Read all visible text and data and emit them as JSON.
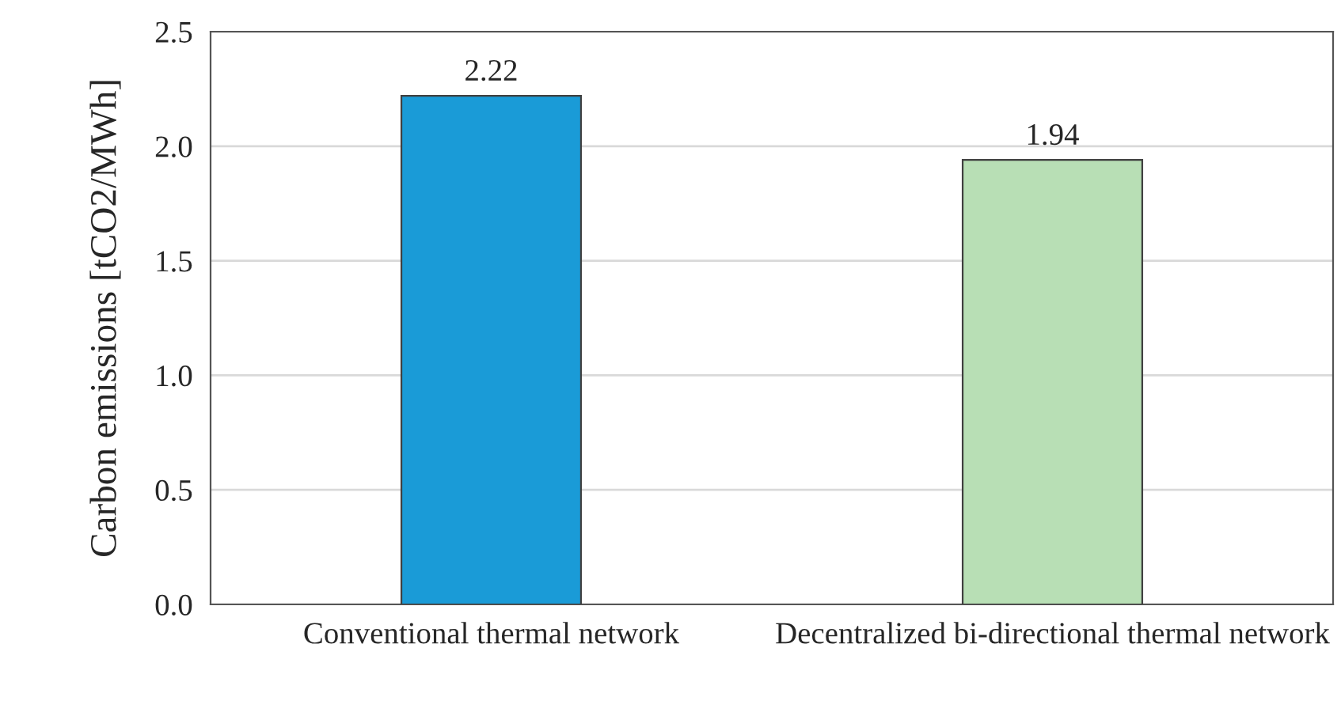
{
  "chart_data": {
    "type": "bar",
    "ylabel": "Carbon emissions [tCO2/MWh]",
    "categories": [
      "Conventional thermal network",
      "Decentralized bi-directional thermal network"
    ],
    "values": [
      2.22,
      1.94
    ],
    "colors": [
      "#1a9bd7",
      "#b8dfb5"
    ],
    "ylim": [
      0,
      2.5
    ],
    "yticks": [
      {
        "value": 0,
        "label": "0.0"
      },
      {
        "value": 0.5,
        "label": "0.5"
      },
      {
        "value": 1.0,
        "label": "1.0"
      },
      {
        "value": 1.5,
        "label": "1.5"
      },
      {
        "value": 2.0,
        "label": "2.0"
      },
      {
        "value": 2.5,
        "label": "2.5"
      }
    ],
    "grid": "y",
    "data_labels": true
  }
}
